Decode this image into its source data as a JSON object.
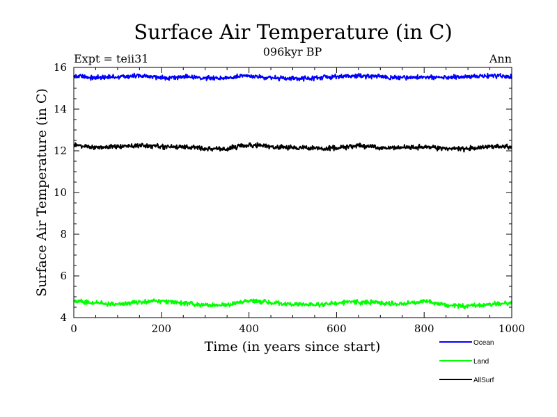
{
  "chart_data": {
    "type": "line",
    "title": "Surface Air Temperature (in C)",
    "subtitle": "096kyr BP",
    "left_label": "Expt = teii31",
    "right_label": "Ann",
    "xlabel": "Time (in years since start)",
    "ylabel": "Surface Air Temperature (in C)",
    "xlim": [
      0,
      1000
    ],
    "ylim": [
      4,
      16
    ],
    "xticks": [
      0,
      200,
      400,
      600,
      800,
      1000
    ],
    "yticks": [
      4,
      6,
      8,
      10,
      12,
      14,
      16
    ],
    "grid": false,
    "legend_position": "bottom-right",
    "series": [
      {
        "name": "Ocean",
        "color": "#0000ff",
        "x": [
          0,
          50,
          100,
          150,
          200,
          250,
          300,
          350,
          400,
          450,
          500,
          550,
          600,
          650,
          700,
          750,
          800,
          850,
          900,
          950,
          1000
        ],
        "y": [
          15.6,
          15.5,
          15.55,
          15.6,
          15.5,
          15.55,
          15.5,
          15.5,
          15.6,
          15.5,
          15.45,
          15.5,
          15.55,
          15.6,
          15.55,
          15.5,
          15.55,
          15.5,
          15.55,
          15.6,
          15.55
        ]
      },
      {
        "name": "Land",
        "color": "#00ff00",
        "x": [
          0,
          50,
          100,
          150,
          200,
          250,
          300,
          350,
          400,
          450,
          500,
          550,
          600,
          650,
          700,
          750,
          800,
          850,
          900,
          950,
          1000
        ],
        "y": [
          4.8,
          4.7,
          4.65,
          4.75,
          4.8,
          4.7,
          4.6,
          4.6,
          4.8,
          4.7,
          4.65,
          4.6,
          4.7,
          4.75,
          4.7,
          4.65,
          4.8,
          4.6,
          4.55,
          4.65,
          4.7
        ]
      },
      {
        "name": "AllSurf",
        "color": "#000000",
        "x": [
          0,
          50,
          100,
          150,
          200,
          250,
          300,
          350,
          400,
          450,
          500,
          550,
          600,
          650,
          700,
          750,
          800,
          850,
          900,
          950,
          1000
        ],
        "y": [
          12.3,
          12.15,
          12.2,
          12.25,
          12.2,
          12.2,
          12.1,
          12.1,
          12.3,
          12.2,
          12.15,
          12.1,
          12.15,
          12.25,
          12.15,
          12.15,
          12.2,
          12.1,
          12.1,
          12.2,
          12.2
        ]
      }
    ]
  }
}
